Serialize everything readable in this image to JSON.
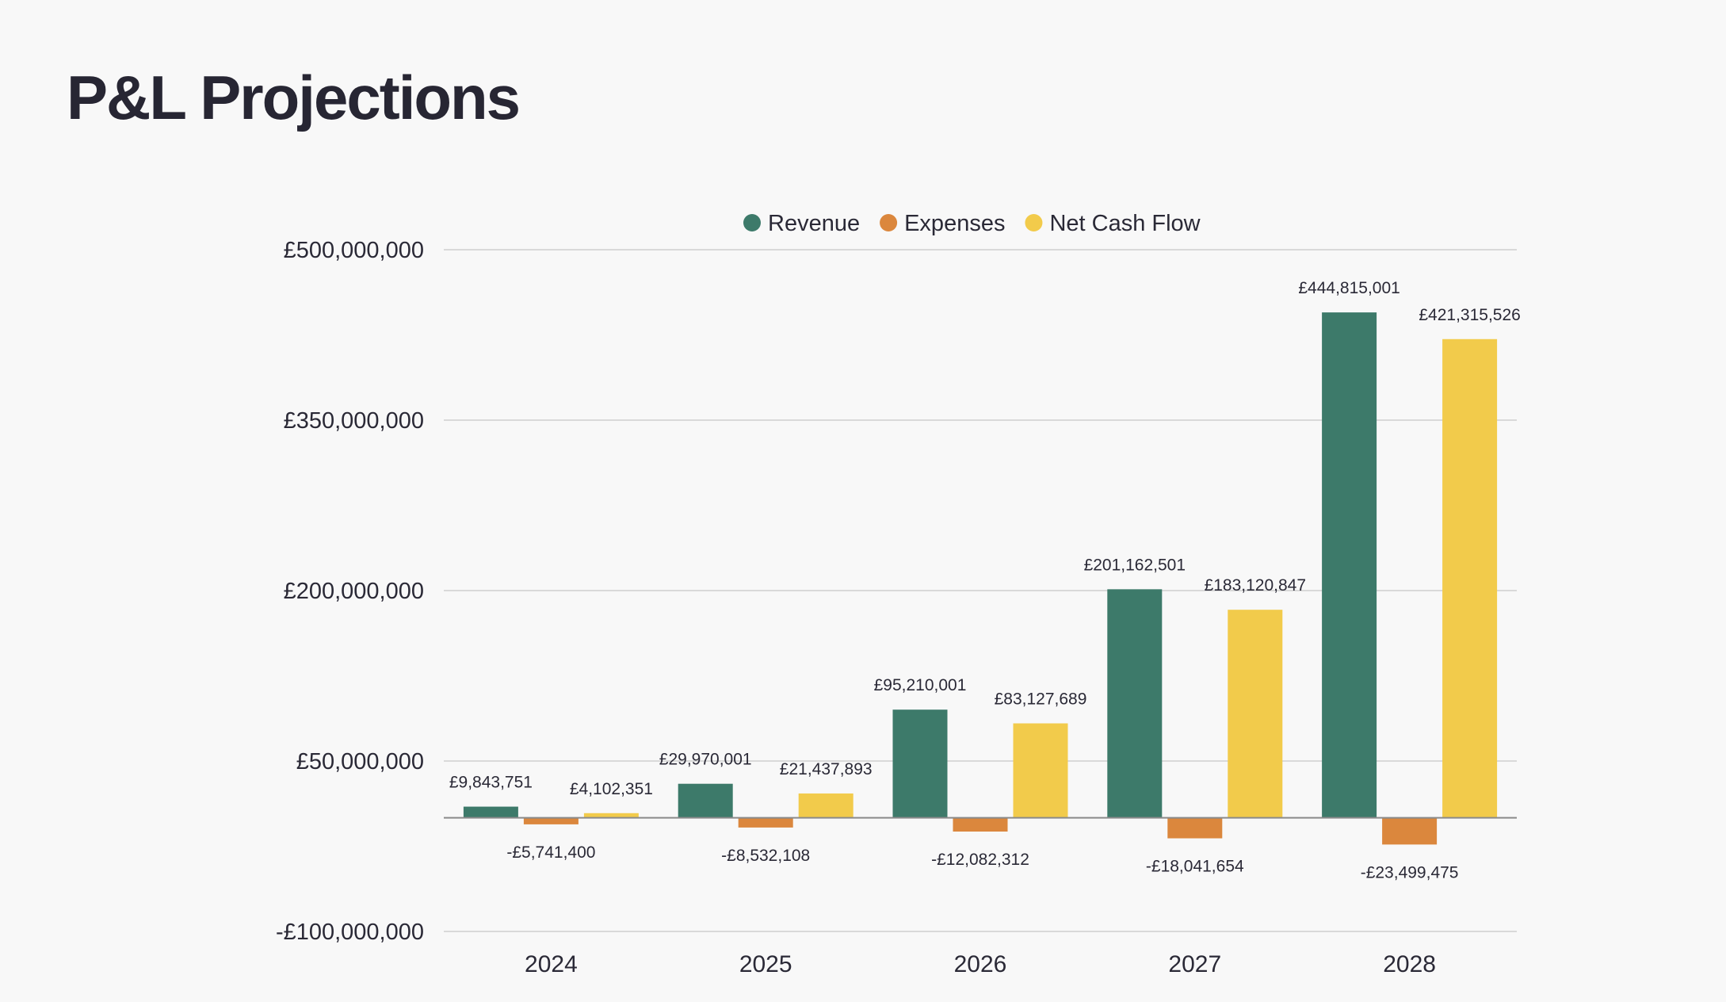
{
  "page": {
    "title": "P&L Projections"
  },
  "chart_data": {
    "type": "bar",
    "title": "",
    "categories": [
      "2024",
      "2025",
      "2026",
      "2027",
      "2028"
    ],
    "series": [
      {
        "name": "Revenue",
        "color": "#3d7a6a",
        "values": [
          9843751,
          29970001,
          95210001,
          201162501,
          444815001
        ],
        "labels": [
          "£9,843,751",
          "£29,970,001",
          "£95,210,001",
          "£201,162,501",
          "£444,815,001"
        ]
      },
      {
        "name": "Expenses",
        "color": "#db873d",
        "values": [
          -5741400,
          -8532108,
          -12082312,
          -18041654,
          -23499475
        ],
        "labels": [
          "-£5,741,400",
          "-£8,532,108",
          "-£12,082,312",
          "-£18,041,654",
          "-£23,499,475"
        ]
      },
      {
        "name": "Net Cash Flow",
        "color": "#f2cb4b",
        "values": [
          4102351,
          21437893,
          83127689,
          183120847,
          421315526
        ],
        "labels": [
          "£4,102,351",
          "£21,437,893",
          "£83,127,689",
          "£183,120,847",
          "£421,315,526"
        ]
      }
    ],
    "y_ticks": [
      -100000000,
      50000000,
      200000000,
      350000000,
      500000000
    ],
    "y_tick_labels": [
      "-£100,000,000",
      "£50,000,000",
      "£200,000,000",
      "£350,000,000",
      "£500,000,000"
    ],
    "ylim": [
      -100000000,
      500000000
    ],
    "grid": true,
    "legend_position": "top-center",
    "xlabel": "",
    "ylabel": ""
  }
}
